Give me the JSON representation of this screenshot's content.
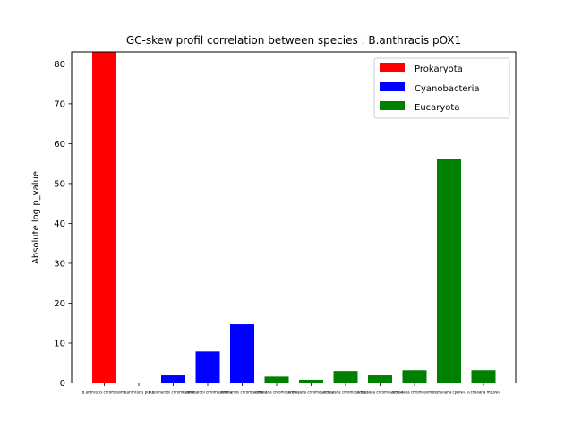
{
  "chart_data": {
    "type": "bar",
    "title": "GC-skew profil correlation between species : B.anthracis pOX1",
    "xlabel": "",
    "ylabel": "Absolute log p_value",
    "ylim": [
      0,
      83
    ],
    "yticks": [
      0,
      10,
      20,
      30,
      40,
      50,
      60,
      70,
      80
    ],
    "grid": false,
    "legend_position": "top-right",
    "legend": [
      {
        "label": "Prokaryota",
        "color": "#ff0000"
      },
      {
        "label": "Cyanobacteria",
        "color": "#0000ff"
      },
      {
        "label": "Eucaryota",
        "color": "#008000"
      }
    ],
    "categories": [
      "B.anthracis chromosome",
      "B.anthracis pOX1",
      "C.reinhardtii chromosome 1",
      "C.reinhardtii chromosome 2",
      "C.reinhardtii chromosome 3",
      "A.thaliana chromosome 1",
      "A.thaliana chromosome 2",
      "A.thaliana chromosome 3",
      "A.thaliana chromosome 4",
      "A.thaliana chromosome 5",
      "A.thaliana cpDNA",
      "A.thaliana mtDNA"
    ],
    "values": [
      83,
      0.1,
      1.9,
      7.9,
      14.7,
      1.6,
      0.8,
      3.0,
      1.9,
      3.2,
      56.1,
      3.2
    ],
    "colors": [
      "#ff0000",
      "#ff0000",
      "#0000ff",
      "#0000ff",
      "#0000ff",
      "#008000",
      "#008000",
      "#008000",
      "#008000",
      "#008000",
      "#008000",
      "#008000"
    ]
  }
}
